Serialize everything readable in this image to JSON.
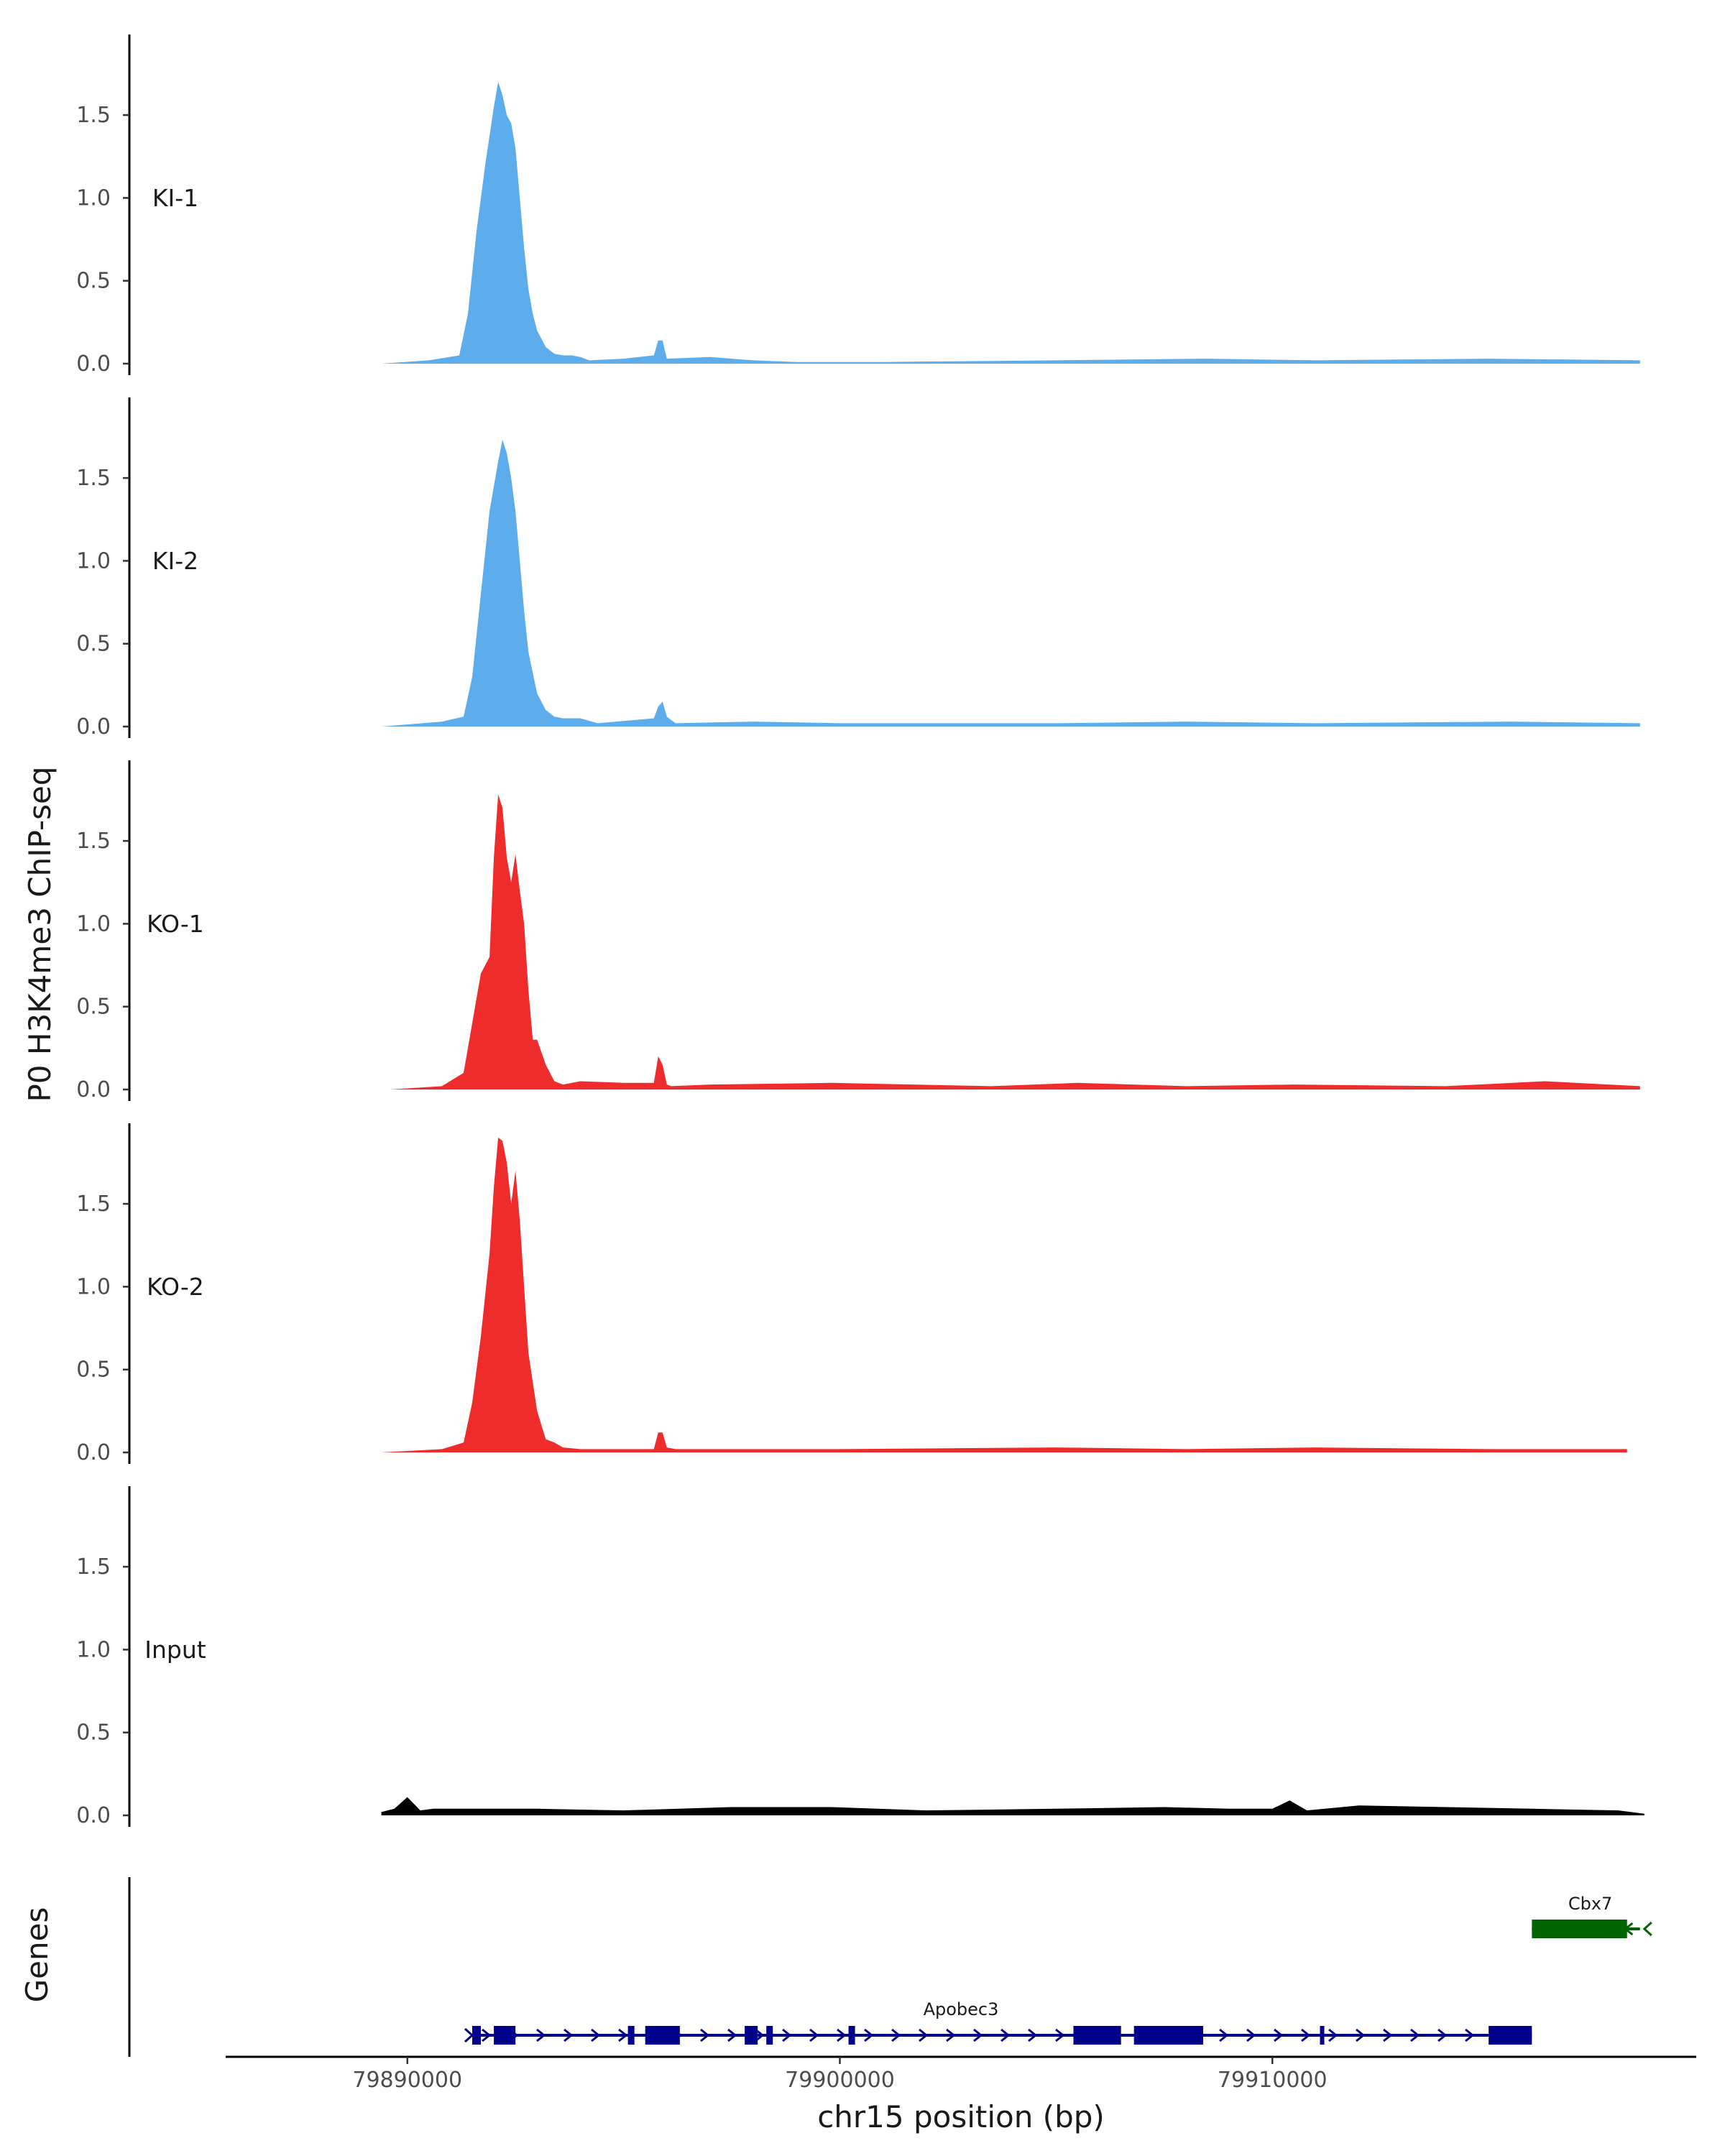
{
  "chart_data": {
    "type": "area",
    "ylabel": "P0 H3K4me3 ChIP-seq",
    "xlabel": "chr15 position (bp)",
    "xlim": [
      79885800,
      79919800
    ],
    "xticks": [
      79890000,
      79900000,
      79910000
    ],
    "xtick_labels": [
      "79890000",
      "79900000",
      "79910000"
    ],
    "ylim": [
      0,
      2.0
    ],
    "yticks": [
      0,
      0.5,
      1.0,
      1.5
    ],
    "ytick_labels": [
      "0.0",
      "0.5",
      "1.0",
      "1.5"
    ],
    "grid": false,
    "legend": "none",
    "colors": {
      "KI": "#5DADEC",
      "KO": "#EE2C2C",
      "Input": "#000000",
      "Apobec3": "#00008B",
      "Cbx7": "#006400"
    },
    "tracks": [
      {
        "label": "KI-1",
        "color": "#5DADEC",
        "x": [
          79889400,
          79890500,
          79891200,
          79891400,
          79891600,
          79891800,
          79892000,
          79892100,
          79892200,
          79892300,
          79892400,
          79892500,
          79892600,
          79892700,
          79892800,
          79892900,
          79893000,
          79893200,
          79893400,
          79893600,
          79893800,
          79894000,
          79894200,
          79895000,
          79895700,
          79895800,
          79895900,
          79896000,
          79897000,
          79898000,
          79899000,
          79901000,
          79905000,
          79908500,
          79911000,
          79915000,
          79918500
        ],
        "y": [
          0.0,
          0.02,
          0.05,
          0.3,
          0.8,
          1.2,
          1.55,
          1.7,
          1.62,
          1.5,
          1.45,
          1.3,
          1.0,
          0.7,
          0.45,
          0.3,
          0.2,
          0.1,
          0.06,
          0.05,
          0.05,
          0.04,
          0.02,
          0.03,
          0.05,
          0.14,
          0.14,
          0.03,
          0.04,
          0.02,
          0.01,
          0.01,
          0.02,
          0.03,
          0.02,
          0.03,
          0.02
        ]
      },
      {
        "label": "KI-2",
        "color": "#5DADEC",
        "x": [
          79889400,
          79890800,
          79891300,
          79891500,
          79891700,
          79891900,
          79892100,
          79892200,
          79892300,
          79892400,
          79892500,
          79892600,
          79892700,
          79892800,
          79893000,
          79893200,
          79893400,
          79893600,
          79894000,
          79894400,
          79895700,
          79895800,
          79895900,
          79896000,
          79896200,
          79898000,
          79900000,
          79905000,
          79908000,
          79911000,
          79915500,
          79918500
        ],
        "y": [
          0.0,
          0.03,
          0.06,
          0.3,
          0.8,
          1.3,
          1.6,
          1.73,
          1.65,
          1.5,
          1.3,
          1.0,
          0.7,
          0.45,
          0.2,
          0.1,
          0.06,
          0.05,
          0.05,
          0.02,
          0.05,
          0.12,
          0.15,
          0.06,
          0.02,
          0.03,
          0.02,
          0.02,
          0.03,
          0.02,
          0.03,
          0.02
        ]
      },
      {
        "label": "KO-1",
        "color": "#EE2C2C",
        "x": [
          79889600,
          79890800,
          79891300,
          79891500,
          79891700,
          79891900,
          79892000,
          79892100,
          79892200,
          79892300,
          79892400,
          79892500,
          79892600,
          79892700,
          79892800,
          79892900,
          79893000,
          79893200,
          79893400,
          79893600,
          79894000,
          79895000,
          79895700,
          79895800,
          79895900,
          79896000,
          79896100,
          79897000,
          79899800,
          79903500,
          79905500,
          79908000,
          79910500,
          79914000,
          79916300,
          79918500
        ],
        "y": [
          0.0,
          0.02,
          0.1,
          0.4,
          0.7,
          0.8,
          1.4,
          1.78,
          1.7,
          1.4,
          1.25,
          1.42,
          1.2,
          1.0,
          0.6,
          0.3,
          0.3,
          0.15,
          0.05,
          0.03,
          0.05,
          0.04,
          0.04,
          0.2,
          0.15,
          0.03,
          0.02,
          0.03,
          0.04,
          0.02,
          0.04,
          0.02,
          0.03,
          0.02,
          0.05,
          0.02
        ]
      },
      {
        "label": "KO-2",
        "color": "#EE2C2C",
        "x": [
          79889400,
          79890800,
          79891300,
          79891500,
          79891700,
          79891900,
          79892000,
          79892100,
          79892200,
          79892300,
          79892400,
          79892500,
          79892600,
          79892700,
          79892800,
          79893000,
          79893200,
          79893400,
          79893600,
          79894000,
          79895700,
          79895800,
          79895900,
          79896000,
          79896200,
          79900000,
          79905000,
          79908000,
          79911000,
          79915000,
          79918200
        ],
        "y": [
          0.0,
          0.02,
          0.06,
          0.3,
          0.7,
          1.2,
          1.6,
          1.9,
          1.88,
          1.75,
          1.5,
          1.7,
          1.4,
          1.0,
          0.6,
          0.25,
          0.08,
          0.06,
          0.03,
          0.02,
          0.02,
          0.12,
          0.12,
          0.03,
          0.02,
          0.02,
          0.03,
          0.02,
          0.03,
          0.02,
          0.02
        ]
      },
      {
        "label": "Input",
        "color": "#000000",
        "x": [
          79889400,
          79889700,
          79890000,
          79890300,
          79890600,
          79891500,
          79893000,
          79895000,
          79897500,
          79899800,
          79902000,
          79905000,
          79907500,
          79909000,
          79910000,
          79910400,
          79910800,
          79912000,
          79914000,
          79916000,
          79918000,
          79918600
        ],
        "y": [
          0.02,
          0.04,
          0.11,
          0.03,
          0.04,
          0.04,
          0.04,
          0.03,
          0.05,
          0.05,
          0.03,
          0.04,
          0.05,
          0.04,
          0.04,
          0.09,
          0.03,
          0.06,
          0.05,
          0.04,
          0.03,
          0.01
        ]
      }
    ],
    "genes": [
      {
        "name": "Apobec3",
        "start": 79891500,
        "end": 79916000,
        "strand": "+",
        "color": "#00008B",
        "exons": [
          [
            79891500,
            79891700
          ],
          [
            79892000,
            79892500
          ],
          [
            79895100,
            79895250
          ],
          [
            79895500,
            79896300
          ],
          [
            79897800,
            79898100
          ],
          [
            79898300,
            79898450
          ],
          [
            79900200,
            79900350
          ],
          [
            79905400,
            79906500
          ],
          [
            79906800,
            79908400
          ],
          [
            79911100,
            79911200
          ],
          [
            79915000,
            79916000
          ]
        ]
      },
      {
        "name": "Cbx7",
        "start": 79916000,
        "end": 79918500,
        "strand": "-",
        "color": "#006400",
        "exons": [
          [
            79916000,
            79918200
          ]
        ]
      }
    ],
    "track_group_label": "Genes"
  }
}
